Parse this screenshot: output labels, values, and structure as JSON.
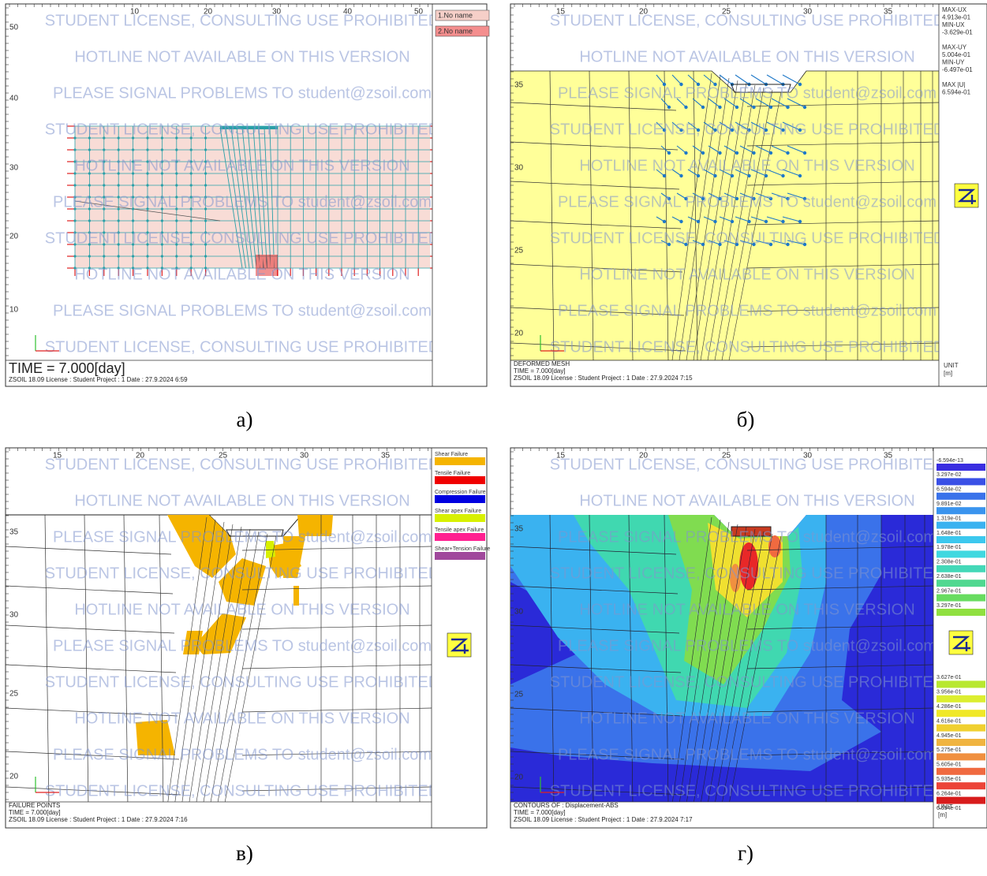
{
  "watermark": [
    "STUDENT LICENSE, CONSULTING USE PROHIBITED",
    "HOTLINE NOT AVAILABLE ON THIS VERSION",
    "PLEASE SIGNAL PROBLEMS TO student@zsoil.com"
  ],
  "panels": [
    {
      "caption": "а)",
      "x_ticks": [
        "10",
        "20",
        "30",
        "40",
        "50"
      ],
      "y_ticks": [
        "50",
        "40",
        "30",
        "20",
        "10"
      ],
      "legend": [
        {
          "label": "1.No name",
          "color": "#f6cfc8"
        },
        {
          "label": "2.No name",
          "color": "#f48e8e"
        }
      ],
      "footer": [
        "TIME = 7.000[day]",
        "ZSOIL 18.09   License : Student   Project : 1     Date : 27.9.2024  6:59"
      ]
    },
    {
      "caption": "б)",
      "x_ticks": [
        "15",
        "20",
        "25",
        "30",
        "35"
      ],
      "y_ticks": [
        "35",
        "30",
        "25",
        "20"
      ],
      "stats": [
        "MAX-UX",
        "4.913e-01",
        "MIN-UX",
        "-3.629e-01",
        "MAX-UY",
        "5.004e-01",
        "MIN-UY",
        "-6.497e-01",
        "MAX |U|",
        "6.594e-01"
      ],
      "unit": [
        "UNIT",
        "[m]"
      ],
      "footer": [
        "DEFORMED MESH",
        "TIME = 7.000[day]",
        "ZSOIL 18.09   License : Student   Project : 1     Date : 27.9.2024  7:15"
      ]
    },
    {
      "caption": "в)",
      "x_ticks": [
        "15",
        "20",
        "25",
        "30",
        "35"
      ],
      "y_ticks": [
        "35",
        "30",
        "25",
        "20"
      ],
      "legend": [
        {
          "label": "Shear Failure",
          "color": "#f5b400"
        },
        {
          "label": "Tensile Failure",
          "color": "#f00000"
        },
        {
          "label": "Compression Failure",
          "color": "#0000e0"
        },
        {
          "label": "Shear apex Failure",
          "color": "#d8f000"
        },
        {
          "label": "Tensile apex Failure",
          "color": "#ff2090"
        },
        {
          "label": "Shear+Tension Failure",
          "color": "#a0489c"
        }
      ],
      "footer": [
        "FAILURE POINTS",
        "TIME = 7.000[day]",
        "ZSOIL 18.09   License : Student   Project : 1     Date : 27.9.2024  7:16"
      ]
    },
    {
      "caption": "г)",
      "x_ticks": [
        "15",
        "20",
        "25",
        "30",
        "35"
      ],
      "y_ticks": [
        "35",
        "30",
        "25",
        "20"
      ],
      "legend": [
        {
          "label": "-6.594e-13",
          "color": "#3a2ee0"
        },
        {
          "label": "3.297e-02",
          "color": "#3a50e6"
        },
        {
          "label": "6.594e-02",
          "color": "#3a72ea"
        },
        {
          "label": "9.891e-02",
          "color": "#3a94ee"
        },
        {
          "label": "1.319e-01",
          "color": "#3ab2f0"
        },
        {
          "label": "1.648e-01",
          "color": "#3cc8ee"
        },
        {
          "label": "1.978e-01",
          "color": "#40d8e0"
        },
        {
          "label": "2.308e-01",
          "color": "#44d8b8"
        },
        {
          "label": "2.638e-01",
          "color": "#50d890"
        },
        {
          "label": "2.967e-01",
          "color": "#68dc60"
        },
        {
          "label": "3.297e-01",
          "color": "#90e040"
        },
        {
          "label": "3.627e-01",
          "color": "#b8e830"
        },
        {
          "label": "3.956e-01",
          "color": "#dcee30"
        },
        {
          "label": "4.286e-01",
          "color": "#f0e828"
        },
        {
          "label": "4.616e-01",
          "color": "#f0d030"
        },
        {
          "label": "4.945e-01",
          "color": "#f0b440"
        },
        {
          "label": "5.275e-01",
          "color": "#f09040"
        },
        {
          "label": "5.605e-01",
          "color": "#f06a40"
        },
        {
          "label": "5.935e-01",
          "color": "#ec4438"
        },
        {
          "label": "6.264e-01",
          "color": "#d81c1c"
        },
        {
          "label": "6.594e-01",
          "color": "#b85010"
        }
      ],
      "unit": [
        "UNIT",
        "[m]"
      ],
      "footer": [
        "CONTOURS OF : Displacement-ABS",
        "TIME = 7.000[day]",
        "ZSOIL 18.09   License : Student   Project : 1     Date : 27.9.2024  7:17"
      ]
    }
  ]
}
